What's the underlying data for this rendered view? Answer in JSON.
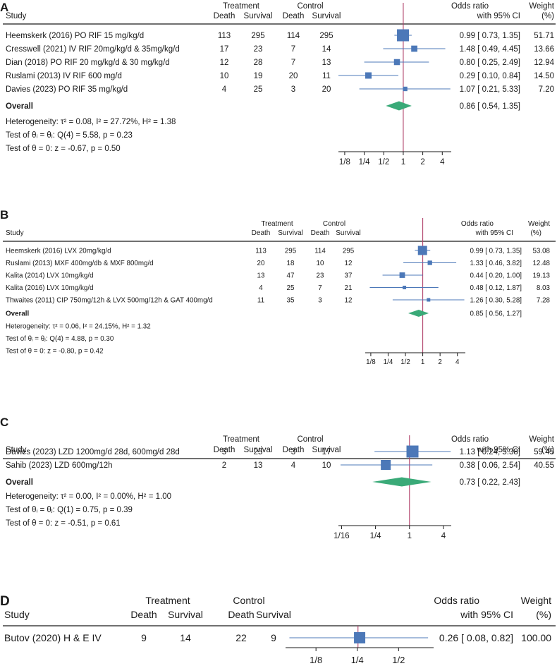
{
  "colors": {
    "box": "#4c78b8",
    "diamond": "#3aaa78",
    "null_line": "#b0406a",
    "ci_line": "#4c78b8",
    "text": "#1a1a1a"
  },
  "chart_data": [
    {
      "type": "forest",
      "panel": "A",
      "headers": {
        "study": "Study",
        "treatment": "Treatment",
        "control": "Control",
        "death": "Death",
        "survival": "Survival",
        "or_line1": "Odds ratio",
        "or_line2": "with 95% CI",
        "weight_line1": "Weight",
        "weight_line2": "(%)"
      },
      "studies": [
        {
          "label": "Heemskerk (2016) PO RIF 15 mg/kg/d",
          "t_death": "113",
          "t_surv": "295",
          "c_death": "114",
          "c_surv": "295",
          "or": 0.99,
          "lo": 0.73,
          "hi": 1.35,
          "or_text": "0.99 [ 0.73,  1.35]",
          "weight": 51.71,
          "weight_text": "51.71"
        },
        {
          "label": "Cresswell (2021) IV RIF 20mg/kg/d & 35mg/kg/d",
          "t_death": "17",
          "t_surv": "23",
          "c_death": "7",
          "c_surv": "14",
          "or": 1.48,
          "lo": 0.49,
          "hi": 4.45,
          "or_text": "1.48 [ 0.49,  4.45]",
          "weight": 13.66,
          "weight_text": "13.66"
        },
        {
          "label": "Dian (2018) PO RIF 20 mg/kg/d & 30 mg/kg/d",
          "t_death": "12",
          "t_surv": "28",
          "c_death": "7",
          "c_surv": "13",
          "or": 0.8,
          "lo": 0.25,
          "hi": 2.49,
          "or_text": "0.80 [ 0.25,  2.49]",
          "weight": 12.94,
          "weight_text": "12.94"
        },
        {
          "label": "Ruslami (2013) IV RIF 600 mg/d",
          "t_death": "10",
          "t_surv": "19",
          "c_death": "20",
          "c_surv": "11",
          "or": 0.29,
          "lo": 0.1,
          "hi": 0.84,
          "or_text": "0.29 [ 0.10,  0.84]",
          "weight": 14.5,
          "weight_text": "14.50"
        },
        {
          "label": "Davies (2023) PO RIF 35 mg/kg/d",
          "t_death": "4",
          "t_surv": "25",
          "c_death": "3",
          "c_surv": "20",
          "or": 1.07,
          "lo": 0.21,
          "hi": 5.33,
          "or_text": "1.07 [ 0.21,  5.33]",
          "weight": 7.2,
          "weight_text": "7.20"
        }
      ],
      "overall": {
        "label": "Overall",
        "or": 0.86,
        "lo": 0.54,
        "hi": 1.35,
        "or_text": "0.86 [ 0.54,  1.35]"
      },
      "stats": [
        "Heterogeneity: τ² = 0.08, I² = 27.72%, H² = 1.38",
        "Test of θᵢ = θⱼ: Q(4) = 5.58, p = 0.23",
        "Test of θ = 0: z = -0.67, p = 0.50"
      ],
      "axis": {
        "scale": "log2",
        "ticks": [
          0.125,
          0.25,
          0.5,
          1,
          2,
          4
        ],
        "tick_labels": [
          "1/8",
          "1/4",
          "1/2",
          "1",
          "2",
          "4"
        ],
        "range": [
          0.1,
          5.5
        ]
      }
    },
    {
      "type": "forest",
      "panel": "B",
      "headers": {
        "study": "Study",
        "treatment": "Treatment",
        "control": "Control",
        "death": "Death",
        "survival": "Survival",
        "or_line1": "Odds ratio",
        "or_line2": "with 95% CI",
        "weight_line1": "Weight",
        "weight_line2": "(%)"
      },
      "studies": [
        {
          "label": "Heemskerk (2016) LVX 20mg/kg/d",
          "t_death": "113",
          "t_surv": "295",
          "c_death": "114",
          "c_surv": "295",
          "or": 0.99,
          "lo": 0.73,
          "hi": 1.35,
          "or_text": "0.99 [ 0.73,  1.35]",
          "weight": 53.08,
          "weight_text": "53.08"
        },
        {
          "label": "Ruslami (2013) MXF 400mg/db & MXF 800mg/d",
          "t_death": "20",
          "t_surv": "18",
          "c_death": "10",
          "c_surv": "12",
          "or": 1.33,
          "lo": 0.46,
          "hi": 3.82,
          "or_text": "1.33 [ 0.46,  3.82]",
          "weight": 12.48,
          "weight_text": "12.48"
        },
        {
          "label": "Kalita (2014) LVX 10mg/kg/d",
          "t_death": "13",
          "t_surv": "47",
          "c_death": "23",
          "c_surv": "37",
          "or": 0.44,
          "lo": 0.2,
          "hi": 1.0,
          "or_text": "0.44 [ 0.20,  1.00]",
          "weight": 19.13,
          "weight_text": "19.13"
        },
        {
          "label": "Kalita (2016) LVX 10mg/kg/d",
          "t_death": "4",
          "t_surv": "25",
          "c_death": "7",
          "c_surv": "21",
          "or": 0.48,
          "lo": 0.12,
          "hi": 1.87,
          "or_text": "0.48 [ 0.12,  1.87]",
          "weight": 8.03,
          "weight_text": "8.03"
        },
        {
          "label": "Thwaites (2011) CIP 750mg/12h & LVX 500mg/12h & GAT 400mg/d",
          "t_death": "11",
          "t_surv": "35",
          "c_death": "3",
          "c_surv": "12",
          "or": 1.26,
          "lo": 0.3,
          "hi": 5.28,
          "or_text": "1.26 [ 0.30,  5.28]",
          "weight": 7.28,
          "weight_text": "7.28"
        }
      ],
      "overall": {
        "label": "Overall",
        "or": 0.85,
        "lo": 0.56,
        "hi": 1.27,
        "or_text": "0.85 [ 0.56,  1.27]"
      },
      "stats": [
        "Heterogeneity: τ² = 0.06, I² = 24.15%, H² = 1.32",
        "Test of θᵢ = θⱼ: Q(4) = 4.88, p = 0.30",
        "Test of θ = 0: z = -0.80, p = 0.42"
      ],
      "axis": {
        "scale": "log2",
        "ticks": [
          0.125,
          0.25,
          0.5,
          1,
          2,
          4
        ],
        "tick_labels": [
          "1/8",
          "1/4",
          "1/2",
          "1",
          "2",
          "4"
        ],
        "range": [
          0.1,
          5.5
        ]
      }
    },
    {
      "type": "forest",
      "panel": "C",
      "headers": {
        "study": "Study",
        "treatment": "Treatment",
        "control": "Control",
        "death": "Death",
        "survival": "Survival",
        "or_line1": "Odds ratio",
        "or_line2": "with 95% CI",
        "weight_line1": "Weight",
        "weight_line2": "(%)"
      },
      "studies": [
        {
          "label": "Davies (2023) LZD 1200mg/d 28d, 600mg/d 28d",
          "t_death": "5",
          "t_surv": "25",
          "c_death": "3",
          "c_surv": "17",
          "or": 1.13,
          "lo": 0.24,
          "hi": 5.38,
          "or_text": "1.13 [ 0.24,  5.38]",
          "weight": 59.45,
          "weight_text": "59.45"
        },
        {
          "label": "Sahib (2023) LZD 600mg/12h",
          "t_death": "2",
          "t_surv": "13",
          "c_death": "4",
          "c_surv": "10",
          "or": 0.38,
          "lo": 0.06,
          "hi": 2.54,
          "or_text": "0.38 [ 0.06,  2.54]",
          "weight": 40.55,
          "weight_text": "40.55"
        }
      ],
      "overall": {
        "label": "Overall",
        "or": 0.73,
        "lo": 0.22,
        "hi": 2.43,
        "or_text": "0.73 [ 0.22,  2.43]"
      },
      "stats": [
        "Heterogeneity: τ² = 0.00, I² = 0.00%, H² = 1.00",
        "Test of θᵢ = θⱼ: Q(1) = 0.75, p = 0.39",
        "Test of θ = 0: z = -0.51, p = 0.61"
      ],
      "axis": {
        "scale": "log2",
        "ticks": [
          0.0625,
          0.25,
          1,
          4
        ],
        "tick_labels": [
          "1/16",
          "1/4",
          "1",
          "4"
        ],
        "range": [
          0.055,
          5.5
        ]
      }
    },
    {
      "type": "forest",
      "panel": "D",
      "headers": {
        "study": "Study",
        "treatment": "Treatment",
        "control": "Control",
        "death": "Death",
        "survival": "Survival",
        "or_line1": "Odds ratio",
        "or_line2": "with 95% CI",
        "weight_line1": "Weight",
        "weight_line2": "(%)"
      },
      "studies": [
        {
          "label": "Butov (2020) H & E IV",
          "t_death": "9",
          "t_surv": "14",
          "c_death": "22",
          "c_surv": "9",
          "or": 0.26,
          "lo": 0.08,
          "hi": 0.82,
          "or_text": "0.26 [ 0.08,  0.82]",
          "weight": 100.0,
          "weight_text": "100.00"
        }
      ],
      "overall": null,
      "stats": [],
      "axis": {
        "scale": "log2",
        "ticks": [
          0.125,
          0.25,
          0.5
        ],
        "tick_labels": [
          "1/8",
          "1/4",
          "1/2"
        ],
        "range": [
          0.075,
          0.9
        ]
      }
    }
  ]
}
